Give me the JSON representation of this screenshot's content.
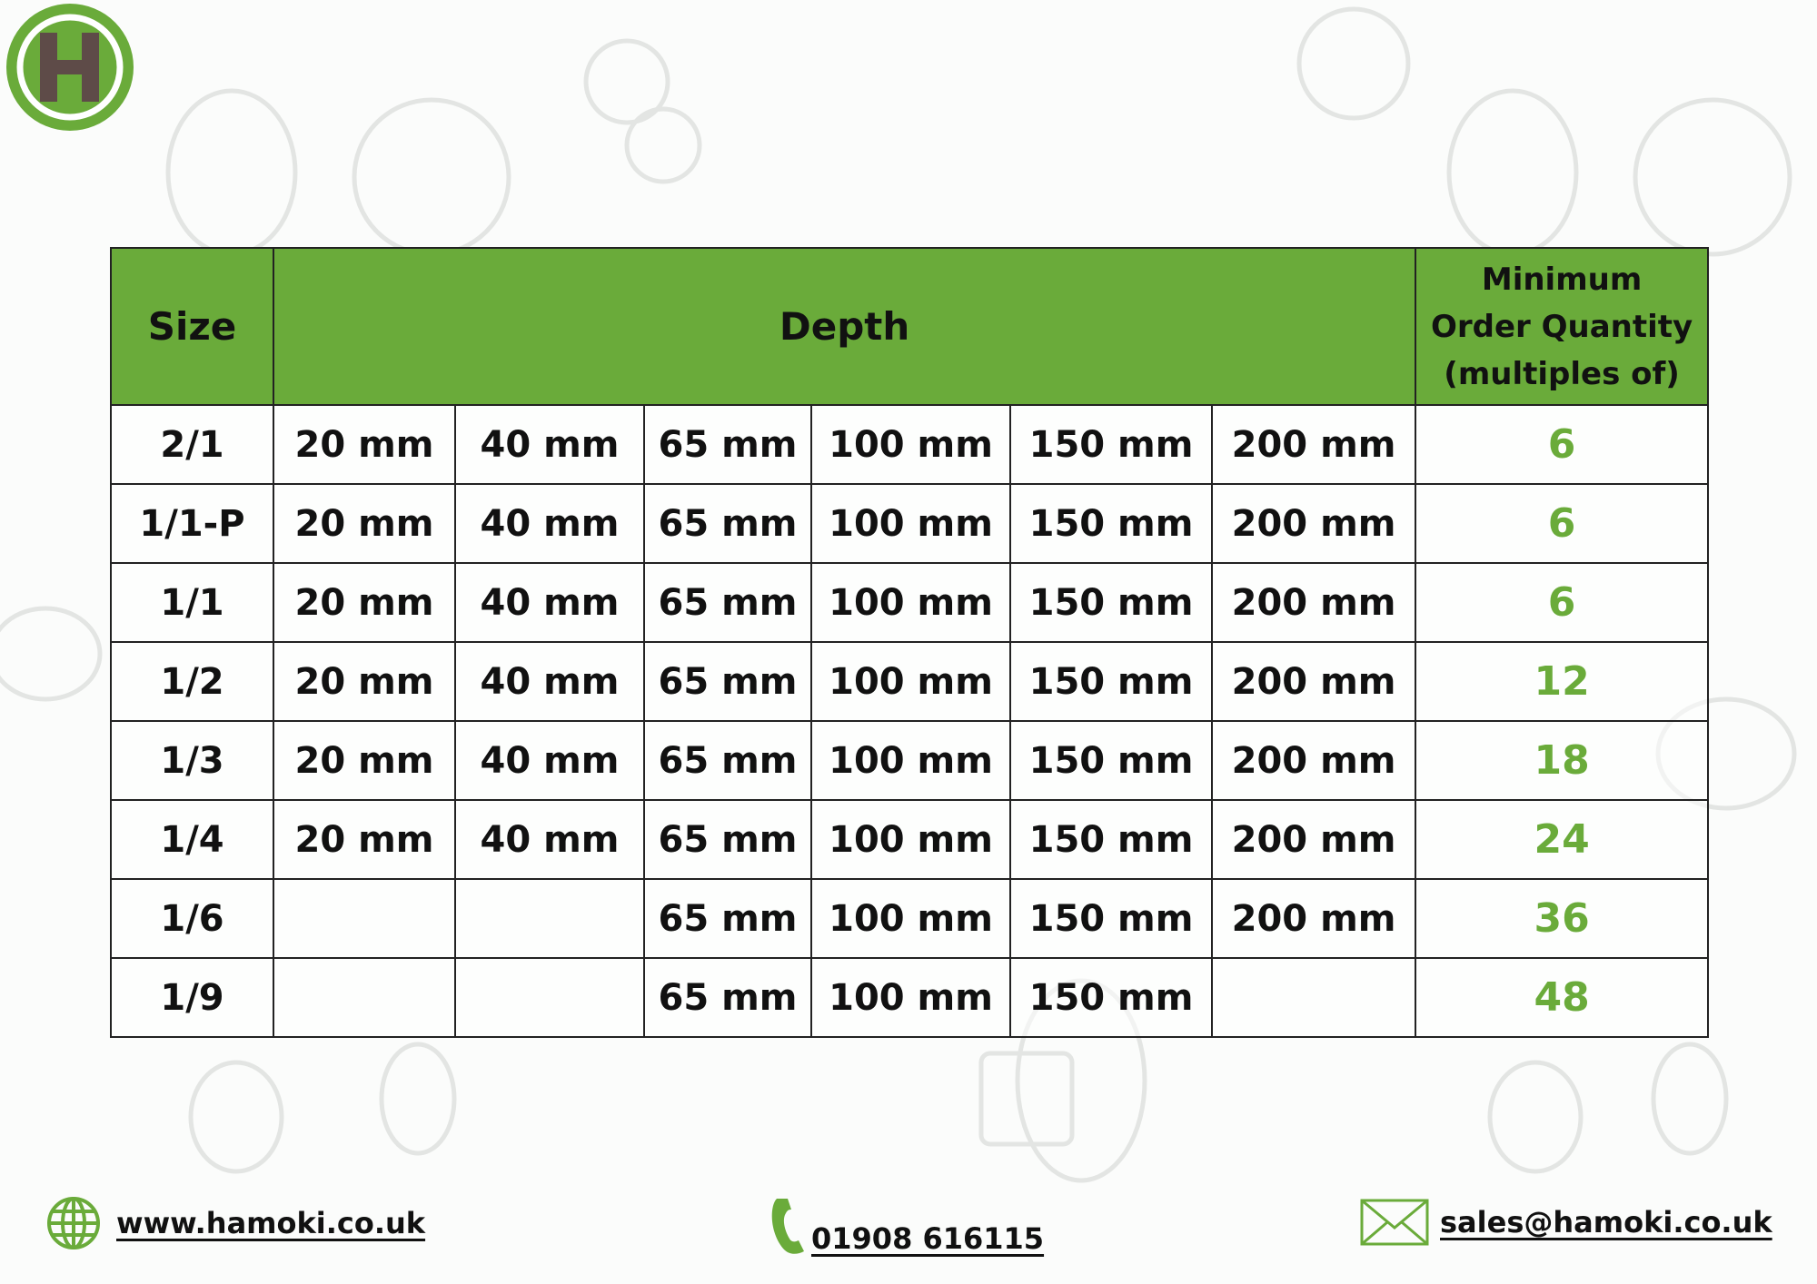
{
  "brand": {
    "logo_letter": "H",
    "green": "#6aab3a",
    "brown": "#5e4b48"
  },
  "table": {
    "headers": {
      "size": "Size",
      "depth": "Depth",
      "moq": [
        "Minimum",
        "Order Quantity",
        "(multiples of)"
      ]
    },
    "rows": [
      {
        "size": "2/1",
        "depths": [
          "20 mm",
          "40 mm",
          "65 mm",
          "100 mm",
          "150 mm",
          "200 mm"
        ],
        "moq": "6"
      },
      {
        "size": "1/1-P",
        "depths": [
          "20 mm",
          "40 mm",
          "65 mm",
          "100 mm",
          "150 mm",
          "200 mm"
        ],
        "moq": "6"
      },
      {
        "size": "1/1",
        "depths": [
          "20 mm",
          "40 mm",
          "65 mm",
          "100 mm",
          "150 mm",
          "200 mm"
        ],
        "moq": "6"
      },
      {
        "size": "1/2",
        "depths": [
          "20 mm",
          "40 mm",
          "65 mm",
          "100 mm",
          "150 mm",
          "200 mm"
        ],
        "moq": "12"
      },
      {
        "size": "1/3",
        "depths": [
          "20 mm",
          "40 mm",
          "65 mm",
          "100 mm",
          "150 mm",
          "200 mm"
        ],
        "moq": "18"
      },
      {
        "size": "1/4",
        "depths": [
          "20 mm",
          "40 mm",
          "65 mm",
          "100 mm",
          "150 mm",
          "200 mm"
        ],
        "moq": "24"
      },
      {
        "size": "1/6",
        "depths": [
          "",
          "",
          "65 mm",
          "100 mm",
          "150 mm",
          "200 mm"
        ],
        "moq": "36"
      },
      {
        "size": "1/9",
        "depths": [
          "",
          "",
          "65 mm",
          "100 mm",
          "150 mm",
          ""
        ],
        "moq": "48"
      }
    ]
  },
  "footer": {
    "website": "www.hamoki.co.uk",
    "phone": "01908 616115",
    "email": "sales@hamoki.co.uk",
    "icons": {
      "website": "globe-icon",
      "phone": "phone-icon",
      "email": "envelope-icon"
    }
  }
}
